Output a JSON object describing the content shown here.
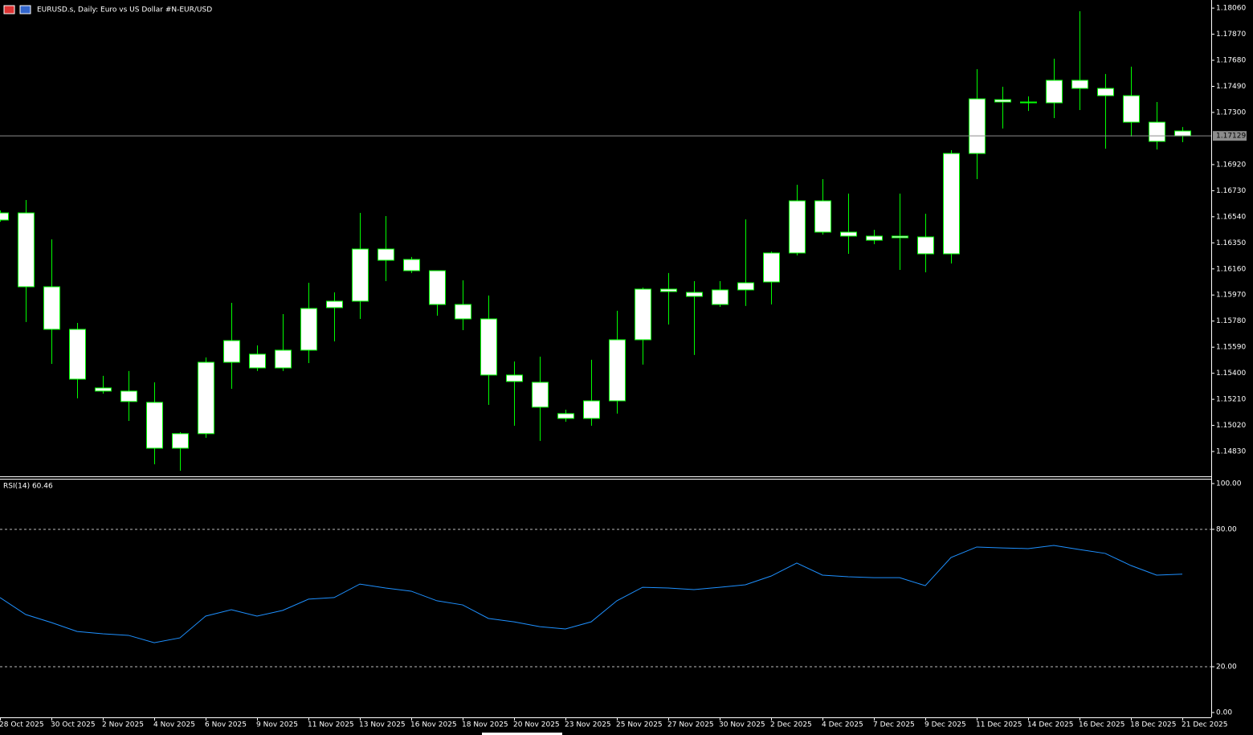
{
  "chart_data": [
    {
      "type": "candlestick",
      "title": "EURUSD.s, Daily:  Euro vs US Dollar #N-EUR/USD",
      "categories": [
        "28 Oct 2025",
        null,
        "30 Oct 2025",
        null,
        "2 Nov 2025",
        null,
        "4 Nov 2025",
        null,
        "6 Nov 2025",
        null,
        "9 Nov 2025",
        null,
        "11 Nov 2025",
        null,
        "13 Nov 2025",
        null,
        "16 Nov 2025",
        null,
        "18 Nov 2025",
        null,
        "20 Nov 2025",
        null,
        "23 Nov 2025",
        null,
        "25 Nov 2025",
        null,
        "27 Nov 2025",
        null,
        "30 Nov 2025",
        null,
        "2 Dec 2025",
        null,
        "4 Dec 2025",
        null,
        "7 Dec 2025",
        null,
        "9 Dec 2025",
        null,
        "11 Dec 2025",
        null,
        "14 Dec 2025",
        null,
        "16 Dec 2025",
        null,
        "18 Dec 2025",
        null,
        "21 Dec 2025"
      ],
      "open": [
        1.16516,
        1.16568,
        1.1603,
        1.1572,
        1.15293,
        1.1527,
        1.15188,
        1.14854,
        1.1496,
        1.1548,
        1.15539,
        1.15439,
        1.15568,
        1.15878,
        1.15925,
        1.16305,
        1.16229,
        1.16147,
        1.15901,
        1.15796,
        1.15387,
        1.15334,
        1.15106,
        1.15071,
        1.15199,
        1.15644,
        1.15995,
        1.15989,
        1.15901,
        1.16007,
        1.16065,
        1.16276,
        1.16656,
        1.16428,
        1.16399,
        1.16387,
        1.16393,
        1.1627,
        1.17001,
        1.17376,
        1.17376,
        1.1737,
        1.17534,
        1.17475,
        1.17422,
        1.17229,
        1.17165
      ],
      "high": [
        1.16586,
        1.16662,
        1.16375,
        1.15767,
        1.15381,
        1.15416,
        1.15334,
        1.14971,
        1.15515,
        1.15913,
        1.15603,
        1.15831,
        1.16059,
        1.15989,
        1.16568,
        1.16545,
        1.16247,
        1.16147,
        1.16077,
        1.15966,
        1.15486,
        1.15521,
        1.15135,
        1.15498,
        1.15855,
        1.16024,
        1.1613,
        1.16071,
        1.16071,
        1.16521,
        1.16287,
        1.16773,
        1.16814,
        1.16709,
        1.16445,
        1.16709,
        1.16562,
        1.17025,
        1.17615,
        1.17487,
        1.17417,
        1.17691,
        1.18037,
        1.1758,
        1.17633,
        1.17376,
        1.17194
      ],
      "low": [
        1.16504,
        1.15773,
        1.15468,
        1.15217,
        1.15252,
        1.15053,
        1.14737,
        1.1469,
        1.1493,
        1.15287,
        1.15416,
        1.15416,
        1.15474,
        1.15632,
        1.15796,
        1.16071,
        1.1613,
        1.15819,
        1.15714,
        1.1517,
        1.15018,
        1.14907,
        1.15047,
        1.15018,
        1.15106,
        1.15463,
        1.15755,
        1.15533,
        1.15884,
        1.1589,
        1.15901,
        1.16258,
        1.1641,
        1.1627,
        1.1634,
        1.16153,
        1.16135,
        1.162,
        1.16814,
        1.17183,
        1.17311,
        1.17259,
        1.17317,
        1.17036,
        1.17124,
        1.1703,
        1.17083
      ],
      "close": [
        1.16568,
        1.1603,
        1.1572,
        1.15357,
        1.1527,
        1.15194,
        1.14854,
        1.1496,
        1.1548,
        1.15638,
        1.15439,
        1.15568,
        1.15872,
        1.15925,
        1.16305,
        1.16223,
        1.16147,
        1.15901,
        1.15796,
        1.15387,
        1.1534,
        1.15153,
        1.15071,
        1.15199,
        1.15644,
        1.16013,
        1.16013,
        1.1596,
        1.16007,
        1.16059,
        1.16276,
        1.16656,
        1.16428,
        1.16399,
        1.16369,
        1.16399,
        1.1627,
        1.17001,
        1.17399,
        1.17393,
        1.1737,
        1.17534,
        1.17475,
        1.17422,
        1.17229,
        1.17089,
        1.17129
      ],
      "color": "#00ff00",
      "body_color": "#ffffff",
      "last_price": 1.17129,
      "ylim": [
        1.14649,
        1.18119
      ],
      "yticks": [
        {
          "value": 1.1806,
          "label": "1.18060"
        },
        {
          "value": 1.1787,
          "label": "1.17870"
        },
        {
          "value": 1.1768,
          "label": "1.17680"
        },
        {
          "value": 1.1749,
          "label": "1.17490"
        },
        {
          "value": 1.173,
          "label": "1.17300"
        },
        {
          "value": 1.1692,
          "label": "1.16920"
        },
        {
          "value": 1.1673,
          "label": "1.16730"
        },
        {
          "value": 1.1654,
          "label": "1.16540"
        },
        {
          "value": 1.1635,
          "label": "1.16350"
        },
        {
          "value": 1.1616,
          "label": "1.16160"
        },
        {
          "value": 1.1597,
          "label": "1.15970"
        },
        {
          "value": 1.1578,
          "label": "1.15780"
        },
        {
          "value": 1.1559,
          "label": "1.15590"
        },
        {
          "value": 1.154,
          "label": "1.15400"
        },
        {
          "value": 1.1521,
          "label": "1.15210"
        },
        {
          "value": 1.1502,
          "label": "1.15020"
        },
        {
          "value": 1.1483,
          "label": "1.14830"
        }
      ]
    },
    {
      "type": "line",
      "title": "RSI(14) 60.46",
      "color": "#1e90ff",
      "values": [
        50.2,
        42.8,
        39.3,
        35.4,
        34.4,
        33.7,
        30.5,
        32.6,
        42.1,
        44.9,
        42.1,
        44.6,
        49.5,
        50.2,
        56.1,
        54.4,
        53.0,
        48.8,
        47.0,
        41.1,
        39.6,
        37.5,
        36.5,
        39.6,
        48.8,
        54.7,
        54.4,
        53.7,
        54.7,
        55.8,
        59.6,
        65.3,
        60.0,
        59.3,
        58.9,
        58.9,
        55.4,
        67.7,
        72.3,
        71.9,
        71.6,
        73.0,
        71.2,
        69.5,
        64.2,
        60.0,
        60.46
      ],
      "levels": [
        80,
        20
      ],
      "ylim": [
        0,
        100
      ],
      "yticks": [
        {
          "value": 100,
          "label": "100.00"
        },
        {
          "value": 80,
          "label": "80.00"
        },
        {
          "value": 20,
          "label": "20.00"
        },
        {
          "value": 0,
          "label": "0.00"
        }
      ]
    }
  ]
}
